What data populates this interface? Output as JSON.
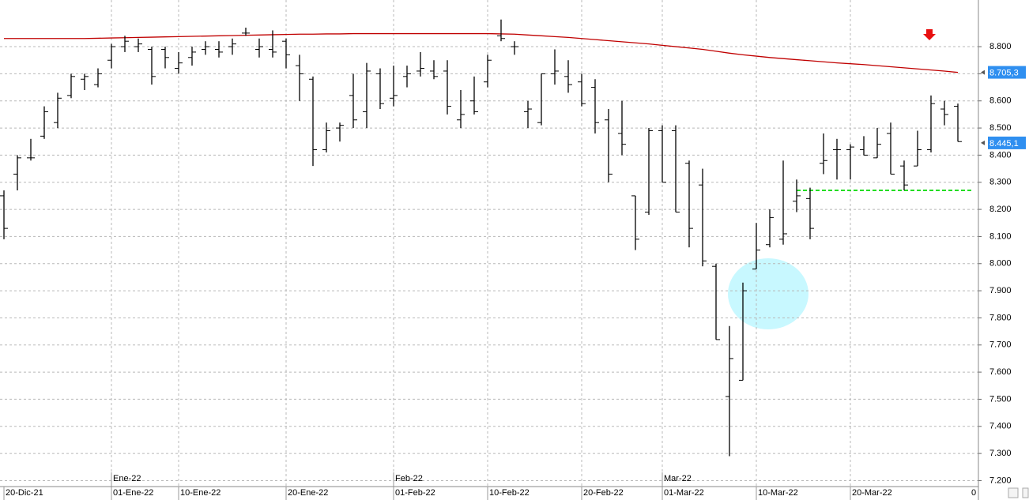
{
  "chart_data": {
    "type": "ohlc",
    "categories": [
      "20-Dic-21",
      null,
      null,
      null,
      null,
      null,
      null,
      null,
      "01-Ene-22",
      null,
      null,
      null,
      null,
      "10-Ene-22",
      null,
      null,
      null,
      null,
      null,
      null,
      null,
      "20-Ene-22",
      null,
      null,
      null,
      null,
      null,
      null,
      null,
      "01-Feb-22",
      null,
      null,
      null,
      null,
      null,
      null,
      "10-Feb-22",
      null,
      null,
      null,
      null,
      null,
      null,
      "20-Feb-22",
      null,
      null,
      null,
      null,
      null,
      "01-Mar-22",
      null,
      null,
      null,
      null,
      null,
      null,
      "10-Mar-22",
      null,
      null,
      null,
      null,
      null,
      null,
      "20-Mar-22",
      null,
      null,
      null,
      null,
      null,
      null,
      null,
      null
    ],
    "months": [
      null,
      null,
      null,
      null,
      null,
      null,
      null,
      null,
      "Ene-22",
      null,
      null,
      null,
      null,
      null,
      null,
      null,
      null,
      null,
      null,
      null,
      null,
      null,
      null,
      null,
      null,
      null,
      null,
      null,
      null,
      "Feb-22",
      null,
      null,
      null,
      null,
      null,
      null,
      null,
      null,
      null,
      null,
      null,
      null,
      null,
      null,
      null,
      null,
      null,
      null,
      null,
      "Mar-22",
      null,
      null,
      null,
      null,
      null,
      null,
      null,
      null,
      null,
      null,
      null,
      null,
      null,
      null,
      null,
      null,
      null,
      null,
      null,
      null,
      null,
      null
    ],
    "ohlc": {
      "color": "#000000",
      "open": [
        8250,
        8330,
        8390,
        8470,
        8520,
        8620,
        8680,
        8660,
        8750,
        8800,
        8800,
        8790,
        8790,
        8720,
        8760,
        8790,
        8790,
        8800,
        8850,
        8790,
        8790,
        8820,
        8730,
        8680,
        8420,
        8500,
        8620,
        8560,
        8700,
        8610,
        8690,
        8710,
        8710,
        8710,
        8530,
        8600,
        8670,
        8840,
        8800,
        8560,
        8520,
        8700,
        8690,
        8670,
        8650,
        8530,
        8480,
        8250,
        8190,
        8490,
        8490,
        8370,
        8290,
        7990,
        7510,
        7570,
        7980,
        8070,
        8090,
        8230,
        8240,
        8370,
        8420,
        8420,
        8420,
        8390,
        8480,
        8360,
        8360,
        8420,
        8570,
        8580
      ],
      "high": [
        8270,
        8400,
        8460,
        8580,
        8630,
        8700,
        8700,
        8720,
        8810,
        8840,
        8830,
        8800,
        8800,
        8780,
        8800,
        8820,
        8820,
        8830,
        8870,
        8830,
        8860,
        8830,
        8770,
        8690,
        8520,
        8520,
        8700,
        8740,
        8720,
        8730,
        8730,
        8780,
        8750,
        8750,
        8640,
        8690,
        8770,
        8900,
        8820,
        8600,
        8700,
        8790,
        8750,
        8700,
        8680,
        8570,
        8600,
        8250,
        8500,
        8510,
        8510,
        8380,
        8350,
        8000,
        7770,
        7930,
        8150,
        8200,
        8380,
        8310,
        8280,
        8480,
        8460,
        8440,
        8470,
        8500,
        8520,
        8380,
        8490,
        8620,
        8600,
        8590
      ],
      "low": [
        8090,
        8270,
        8380,
        8460,
        8500,
        8610,
        8640,
        8650,
        8720,
        8780,
        8780,
        8660,
        8720,
        8700,
        8730,
        8770,
        8760,
        8770,
        8840,
        8760,
        8760,
        8720,
        8600,
        8360,
        8410,
        8450,
        8500,
        8500,
        8570,
        8580,
        8650,
        8690,
        8680,
        8550,
        8500,
        8550,
        8650,
        8820,
        8770,
        8500,
        8510,
        8660,
        8630,
        8580,
        8480,
        8300,
        8400,
        8050,
        8180,
        8300,
        8190,
        8060,
        7990,
        7720,
        7290,
        7570,
        7980,
        8060,
        8070,
        8190,
        8090,
        8330,
        8310,
        8310,
        8400,
        8390,
        8330,
        8270,
        8360,
        8410,
        8510,
        8450
      ],
      "close": [
        8130,
        8390,
        8390,
        8560,
        8610,
        8690,
        8690,
        8700,
        8800,
        8820,
        8810,
        8690,
        8760,
        8740,
        8780,
        8800,
        8780,
        8810,
        8850,
        8800,
        8780,
        8770,
        8700,
        8420,
        8490,
        8510,
        8530,
        8710,
        8590,
        8620,
        8700,
        8720,
        8690,
        8580,
        8550,
        8560,
        8750,
        8830,
        8800,
        8570,
        8700,
        8710,
        8660,
        8590,
        8520,
        8330,
        8440,
        8090,
        8490,
        8300,
        8190,
        8130,
        8010,
        7720,
        7650,
        7900,
        8050,
        8170,
        8110,
        8250,
        8130,
        8380,
        8420,
        8430,
        8400,
        8440,
        8330,
        8290,
        8420,
        8590,
        8550,
        8450
      ]
    },
    "overlays": [
      {
        "color": "#c00000",
        "dashed": false,
        "values": [
          8830,
          8830,
          8830,
          8830,
          8830,
          8830,
          8830,
          8831,
          8832,
          8833,
          8834,
          8835,
          8836,
          8837,
          8838,
          8839,
          8840,
          8841,
          8842,
          8843,
          8844,
          8845,
          8846,
          8846,
          8847,
          8847,
          8848,
          8848,
          8848,
          8848,
          8848,
          8848,
          8848,
          8848,
          8848,
          8848,
          8848,
          8847,
          8846,
          8843,
          8840,
          8837,
          8834,
          8830,
          8826,
          8822,
          8818,
          8814,
          8810,
          8805,
          8800,
          8795,
          8790,
          8783,
          8776,
          8770,
          8765,
          8760,
          8756,
          8752,
          8748,
          8744,
          8740,
          8737,
          8734,
          8730,
          8726,
          8722,
          8718,
          8714,
          8710,
          8705
        ]
      },
      {
        "color": "#22dd22",
        "dashed": true,
        "values": [
          null,
          null,
          null,
          null,
          null,
          null,
          null,
          null,
          null,
          null,
          null,
          null,
          null,
          null,
          null,
          null,
          null,
          null,
          null,
          null,
          null,
          null,
          null,
          null,
          null,
          null,
          null,
          null,
          null,
          null,
          null,
          null,
          null,
          null,
          null,
          null,
          null,
          null,
          null,
          null,
          null,
          null,
          null,
          null,
          null,
          null,
          null,
          null,
          null,
          null,
          null,
          null,
          null,
          null,
          null,
          null,
          null,
          null,
          null,
          8270,
          8270,
          8270,
          8270,
          8270,
          8270,
          8270,
          8270,
          8270,
          8270,
          8270,
          8270,
          8270,
          8270
        ]
      }
    ],
    "price_flags": [
      {
        "value": 8705.3,
        "label": "8.705,3",
        "color": "#2f8ff0"
      },
      {
        "value": 8445.1,
        "label": "8.445,1",
        "color": "#2f8ff0"
      }
    ],
    "ylim": [
      7178,
      8972
    ],
    "yticks": [
      {
        "value": 7200,
        "label": "7.200"
      },
      {
        "value": 7300,
        "label": "7.300"
      },
      {
        "value": 7400,
        "label": "7.400"
      },
      {
        "value": 7500,
        "label": "7.500"
      },
      {
        "value": 7600,
        "label": "7.600"
      },
      {
        "value": 7700,
        "label": "7.700"
      },
      {
        "value": 7800,
        "label": "7.800"
      },
      {
        "value": 7900,
        "label": "7.900"
      },
      {
        "value": 8000,
        "label": "8.000"
      },
      {
        "value": 8100,
        "label": "8.100"
      },
      {
        "value": 8200,
        "label": "8.200"
      },
      {
        "value": 8300,
        "label": "8.300"
      },
      {
        "value": 8400,
        "label": "8.400"
      },
      {
        "value": 8500,
        "label": "8.500"
      },
      {
        "value": 8600,
        "label": "8.600"
      },
      {
        "value": 8700,
        "label": "8.700"
      },
      {
        "value": 8800,
        "label": "8.800"
      }
    ],
    "x_end_label": "0",
    "grid": true
  }
}
